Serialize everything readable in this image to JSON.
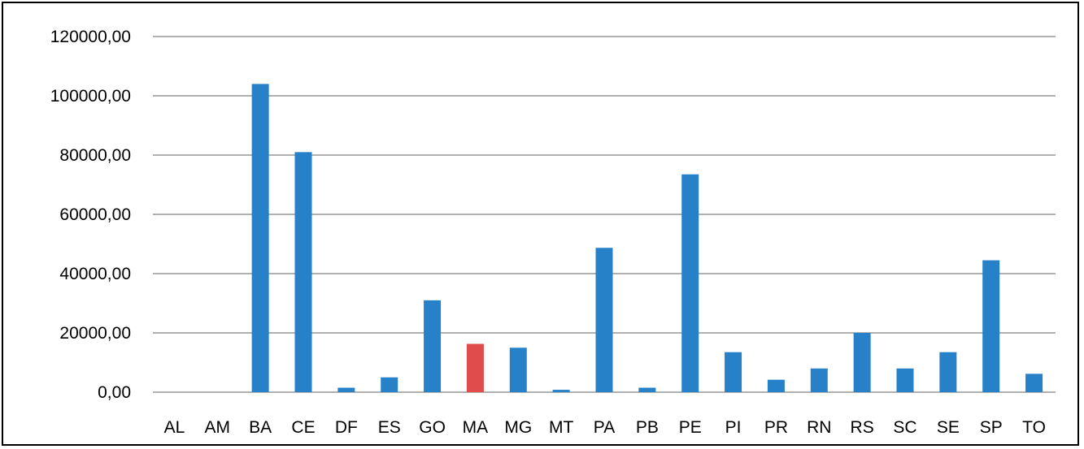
{
  "chart_data": {
    "type": "bar",
    "title": "",
    "xlabel": "",
    "ylabel": "",
    "categories": [
      "AL",
      "AM",
      "BA",
      "CE",
      "DF",
      "ES",
      "GO",
      "MA",
      "MG",
      "MT",
      "PA",
      "PB",
      "PE",
      "PI",
      "PR",
      "RN",
      "RS",
      "SC",
      "SE",
      "SP",
      "TO"
    ],
    "values": [
      0,
      0,
      104000,
      81000,
      1500,
      5000,
      31000,
      16300,
      15000,
      800,
      48700,
      1500,
      73500,
      13500,
      4200,
      8000,
      20000,
      8000,
      13500,
      44500,
      6200
    ],
    "ylim": [
      0,
      120000
    ],
    "y_ticks": [
      0,
      20000,
      40000,
      60000,
      80000,
      100000,
      120000
    ],
    "y_tick_labels": [
      "0,00",
      "20000,00",
      "40000,00",
      "60000,00",
      "80000,00",
      "100000,00",
      "120000,00"
    ],
    "grid": true,
    "legend": "none",
    "bar_color": "#2681C8",
    "highlight_category": "MA",
    "highlight_color": "#E04B4B",
    "grid_color": "#808080"
  }
}
